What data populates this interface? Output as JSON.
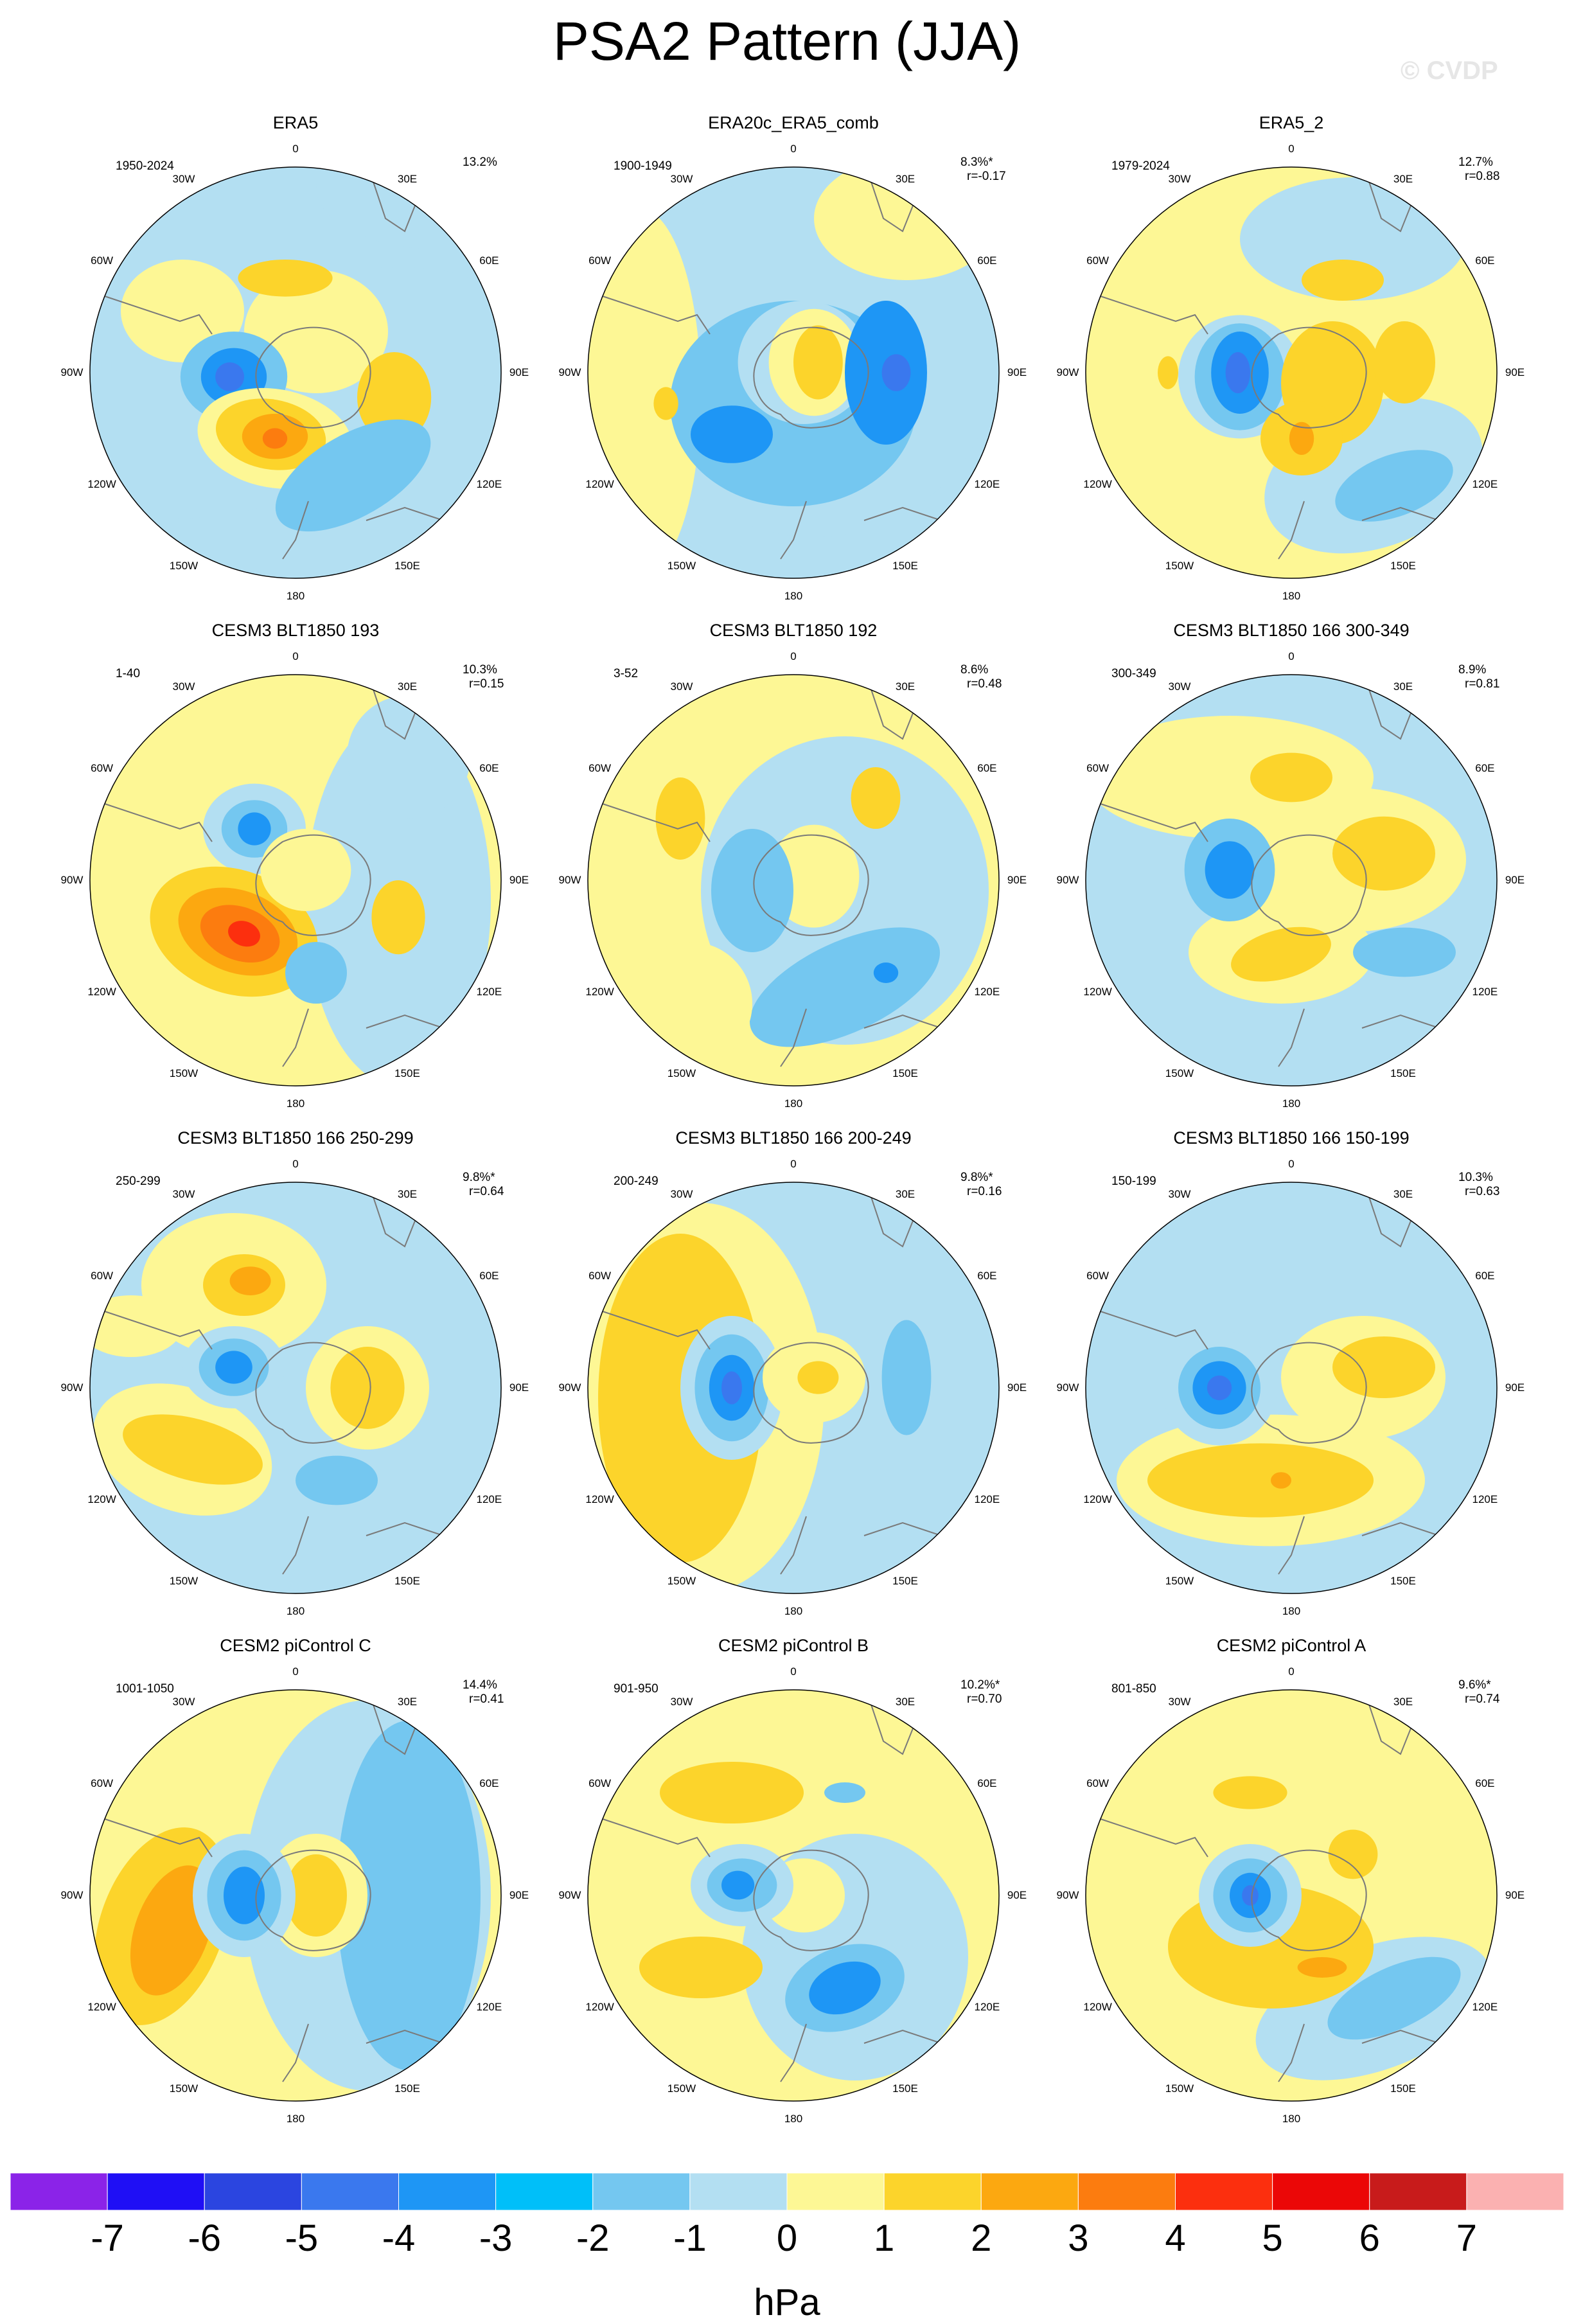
{
  "figure": {
    "title": "PSA2 Pattern (JJA)",
    "watermark": "© CVDP",
    "units": "hPa"
  },
  "colorbar": {
    "ticks": [
      "-7",
      "-6",
      "-5",
      "-4",
      "-3",
      "-2",
      "-1",
      "0",
      "1",
      "2",
      "3",
      "4",
      "5",
      "6",
      "7"
    ],
    "colors": [
      "#8b23e8",
      "#1f0ff5",
      "#2b45e0",
      "#3a78ee",
      "#1e96f5",
      "#00bff9",
      "#74c7f0",
      "#b3dff2",
      "#fdf795",
      "#fcd42b",
      "#fca810",
      "#fc7c0f",
      "#fc2f0e",
      "#eb0707",
      "#c81b1b",
      "#fbb1b1"
    ]
  },
  "lon_labels": [
    "0",
    "30E",
    "60E",
    "90E",
    "120E",
    "150E",
    "180",
    "150W",
    "120W",
    "90W",
    "60W",
    "30W"
  ],
  "panels": [
    {
      "title": "ERA5",
      "period": "1950-2024",
      "pct": "13.2%",
      "r": ""
    },
    {
      "title": "ERA20c_ERA5_comb",
      "period": "1900-1949",
      "pct": "8.3%*",
      "r": "r=-0.17"
    },
    {
      "title": "ERA5_2",
      "period": "1979-2024",
      "pct": "12.7%",
      "r": "r=0.88"
    },
    {
      "title": "CESM3 BLT1850 193",
      "period": "1-40",
      "pct": "10.3%",
      "r": "r=0.15"
    },
    {
      "title": "CESM3 BLT1850 192",
      "period": "3-52",
      "pct": "8.6%",
      "r": "r=0.48"
    },
    {
      "title": "CESM3 BLT1850 166 300-349",
      "period": "300-349",
      "pct": "8.9%",
      "r": "r=0.81"
    },
    {
      "title": "CESM3 BLT1850 166 250-299",
      "period": "250-299",
      "pct": "9.8%*",
      "r": "r=0.64"
    },
    {
      "title": "CESM3 BLT1850 166 200-249",
      "period": "200-249",
      "pct": "9.8%*",
      "r": "r=0.16"
    },
    {
      "title": "CESM3 BLT1850 166 150-199",
      "period": "150-199",
      "pct": "10.3%",
      "r": "r=0.63"
    },
    {
      "title": "CESM2 piControl C",
      "period": "1001-1050",
      "pct": "14.4%",
      "r": "r=0.41"
    },
    {
      "title": "CESM2 piControl B",
      "period": "901-950",
      "pct": "10.2%*",
      "r": "r=0.70"
    },
    {
      "title": "CESM2 piControl A",
      "period": "801-850",
      "pct": "9.6%*",
      "r": "r=0.74"
    }
  ]
}
